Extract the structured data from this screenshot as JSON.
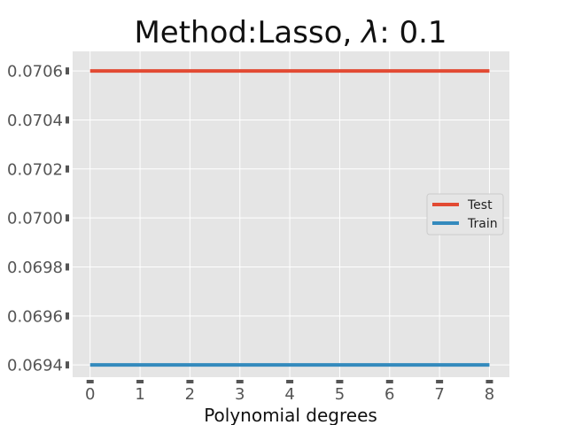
{
  "chart_data": {
    "type": "line",
    "title_text": "Method:Lasso, ",
    "title_lambda": "λ",
    "title_suffix": ": 0.1",
    "xlabel": "Polynomial degrees",
    "ylabel": "",
    "x": [
      0,
      1,
      2,
      3,
      4,
      5,
      6,
      7,
      8
    ],
    "xlim": [
      -0.35,
      8.4
    ],
    "ylim": [
      0.06935,
      0.07068
    ],
    "xticks": [
      0,
      1,
      2,
      3,
      4,
      5,
      6,
      7,
      8
    ],
    "xtick_labels": [
      "0",
      "1",
      "2",
      "3",
      "4",
      "5",
      "6",
      "7",
      "8"
    ],
    "yticks": [
      0.0694,
      0.0696,
      0.0698,
      0.07,
      0.0702,
      0.0704,
      0.0706
    ],
    "ytick_labels": [
      "0.0694",
      "0.0696",
      "0.0698",
      "0.0700",
      "0.0702",
      "0.0704",
      "0.0706"
    ],
    "series": [
      {
        "name": "Test",
        "color": "#E24A33",
        "values": [
          0.0706,
          0.0706,
          0.0706,
          0.0706,
          0.0706,
          0.0706,
          0.0706,
          0.0706,
          0.0706
        ]
      },
      {
        "name": "Train",
        "color": "#348ABD",
        "values": [
          0.0694,
          0.0694,
          0.0694,
          0.0694,
          0.0694,
          0.0694,
          0.0694,
          0.0694,
          0.0694
        ]
      }
    ],
    "grid": true,
    "legend_position": "center-right",
    "plot_background": "#E5E5E5",
    "grid_color": "#FFFFFF",
    "tick_mark_color": "#555555"
  }
}
